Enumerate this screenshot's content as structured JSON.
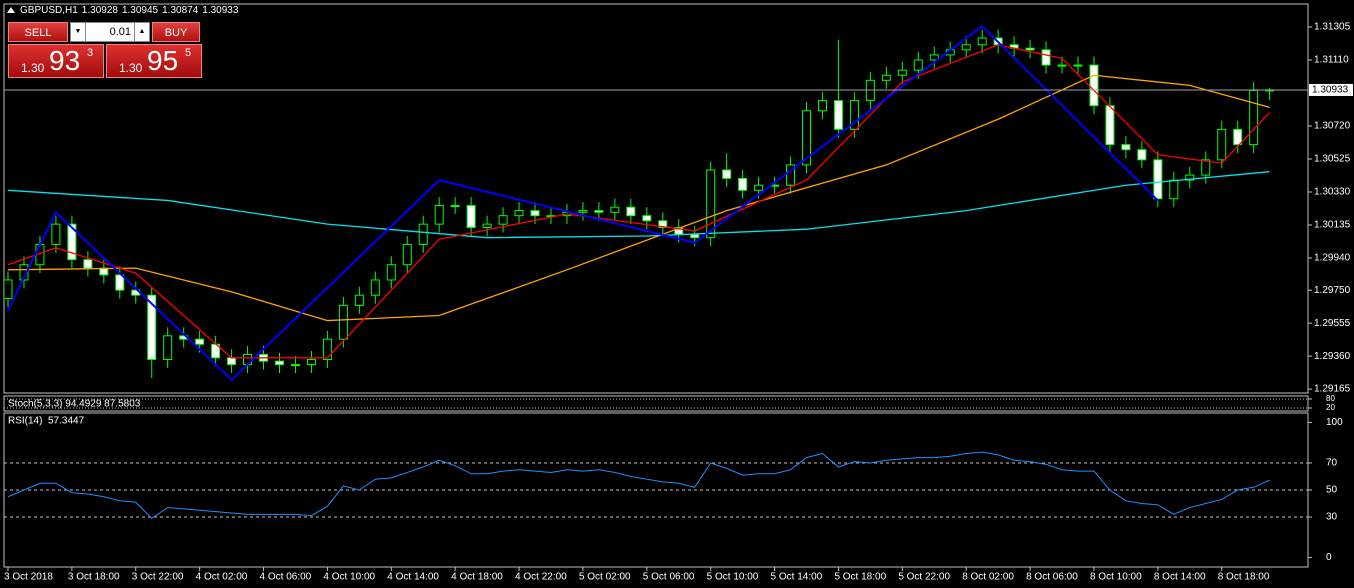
{
  "header": {
    "symbol": "GBPUSD,H1"
  },
  "trade_panel": {
    "sell_label": "SELL",
    "buy_label": "BUY",
    "lot": "0.01",
    "bid": {
      "prefix": "1.30",
      "big": "93",
      "small": "3"
    },
    "ask": {
      "prefix": "1.30",
      "big": "95",
      "small": "5"
    }
  },
  "chart_data": [
    {
      "type": "candlestick",
      "categories": [
        "3 Oct 2018",
        null,
        null,
        null,
        "3 Oct 18:00",
        null,
        null,
        null,
        "3 Oct 22:00",
        null,
        null,
        null,
        "4 Oct 02:00",
        null,
        null,
        null,
        "4 Oct 06:00",
        null,
        null,
        null,
        "4 Oct 10:00",
        null,
        null,
        null,
        "4 Oct 14:00",
        null,
        null,
        null,
        "4 Oct 18:00",
        null,
        null,
        null,
        "4 Oct 22:00",
        null,
        null,
        null,
        "5 Oct 02:00",
        null,
        null,
        null,
        "5 Oct 06:00",
        null,
        null,
        null,
        "5 Oct 10:00",
        null,
        null,
        null,
        "5 Oct 14:00",
        null,
        null,
        null,
        "5 Oct 18:00",
        null,
        null,
        null,
        "5 Oct 22:00",
        null,
        null,
        null,
        "8 Oct 02:00",
        null,
        null,
        null,
        "8 Oct 06:00",
        null,
        null,
        null,
        "8 Oct 10:00",
        null,
        null,
        null,
        "8 Oct 14:00",
        null,
        null,
        null,
        "8 Oct 18:00",
        null,
        null,
        null
      ],
      "open": [
        1.297,
        1.2981,
        1.299,
        1.3002,
        1.3014,
        1.2993,
        1.2988,
        1.2984,
        1.2975,
        1.2972,
        1.2934,
        1.2948,
        1.2946,
        1.2943,
        1.2935,
        1.2931,
        1.2937,
        1.2933,
        1.2931,
        1.2931,
        1.2934,
        1.2946,
        1.2966,
        1.2972,
        1.2981,
        1.299,
        1.3002,
        1.3014,
        1.3025,
        1.3025,
        1.3012,
        1.3014,
        1.3019,
        1.3022,
        1.3019,
        1.3019,
        1.3021,
        1.3022,
        1.3021,
        1.3024,
        1.3019,
        1.3016,
        1.3012,
        1.3008,
        1.3006,
        1.3046,
        1.3041,
        1.3034,
        1.3037,
        1.3037,
        1.3049,
        1.3081,
        1.3087,
        1.307,
        1.3087,
        1.3099,
        1.3102,
        1.3105,
        1.3111,
        1.3114,
        1.3117,
        1.312,
        1.3124,
        1.312,
        1.3118,
        1.3117,
        1.3108,
        1.3108,
        1.3108,
        1.3084,
        1.3061,
        1.3058,
        1.3052,
        1.3029,
        1.304,
        1.3043,
        1.3052,
        1.307,
        1.3061,
        1.30928
      ],
      "high": [
        1.2986,
        1.2995,
        1.3007,
        1.3019,
        1.3019,
        1.2998,
        1.2993,
        1.2989,
        1.298,
        1.2977,
        1.2953,
        1.2953,
        1.2951,
        1.2948,
        1.294,
        1.2942,
        1.2942,
        1.2938,
        1.2936,
        1.2939,
        1.2951,
        1.2971,
        1.2977,
        1.2986,
        1.2995,
        1.3007,
        1.3019,
        1.303,
        1.303,
        1.303,
        1.3019,
        1.3024,
        1.3027,
        1.3027,
        1.3024,
        1.3026,
        1.3027,
        1.3027,
        1.3029,
        1.3029,
        1.3024,
        1.3021,
        1.3017,
        1.3013,
        1.3051,
        1.3056,
        1.3046,
        1.3042,
        1.3042,
        1.3054,
        1.3086,
        1.3092,
        1.3123,
        1.3092,
        1.3104,
        1.3107,
        1.311,
        1.3116,
        1.3119,
        1.3122,
        1.3125,
        1.3129,
        1.3129,
        1.3125,
        1.3123,
        1.3122,
        1.3113,
        1.3113,
        1.3113,
        1.3089,
        1.3066,
        1.3063,
        1.3057,
        1.3045,
        1.3048,
        1.3057,
        1.3075,
        1.3075,
        1.3098,
        1.30945
      ],
      "low": [
        1.2965,
        1.2976,
        1.2985,
        1.2997,
        1.2988,
        1.2983,
        1.2979,
        1.297,
        1.2967,
        1.2923,
        1.2929,
        1.2941,
        1.2938,
        1.293,
        1.2926,
        1.2926,
        1.2928,
        1.2926,
        1.2926,
        1.2926,
        1.2929,
        1.2941,
        1.2961,
        1.2967,
        1.2976,
        1.2985,
        1.2997,
        1.3009,
        1.302,
        1.3007,
        1.3007,
        1.3009,
        1.3014,
        1.3014,
        1.3014,
        1.3014,
        1.3016,
        1.3016,
        1.3016,
        1.3014,
        1.3011,
        1.3007,
        1.3003,
        1.3001,
        1.3001,
        1.3036,
        1.3029,
        1.3029,
        1.3032,
        1.3032,
        1.3044,
        1.3076,
        1.3065,
        1.3065,
        1.3082,
        1.3094,
        1.3097,
        1.31,
        1.3106,
        1.3109,
        1.3112,
        1.3115,
        1.3115,
        1.3113,
        1.3112,
        1.3103,
        1.3103,
        1.3103,
        1.3079,
        1.3056,
        1.3053,
        1.3047,
        1.3024,
        1.3024,
        1.3035,
        1.3038,
        1.3047,
        1.3056,
        1.3056,
        1.30874
      ],
      "close": [
        1.2981,
        1.299,
        1.3002,
        1.3014,
        1.2993,
        1.2988,
        1.2984,
        1.2975,
        1.2972,
        1.2934,
        1.2948,
        1.2946,
        1.2943,
        1.2935,
        1.2931,
        1.2937,
        1.2933,
        1.2931,
        1.2931,
        1.2934,
        1.2946,
        1.2966,
        1.2972,
        1.2981,
        1.299,
        1.3002,
        1.3014,
        1.3025,
        1.3025,
        1.3012,
        1.3014,
        1.3019,
        1.3022,
        1.3019,
        1.3019,
        1.3021,
        1.3022,
        1.3021,
        1.3024,
        1.3019,
        1.3016,
        1.3012,
        1.3008,
        1.3006,
        1.3046,
        1.3041,
        1.3034,
        1.3037,
        1.3037,
        1.3049,
        1.3081,
        1.3087,
        1.307,
        1.3087,
        1.3099,
        1.3102,
        1.3105,
        1.3111,
        1.3114,
        1.3117,
        1.312,
        1.3124,
        1.312,
        1.3118,
        1.3117,
        1.3108,
        1.3108,
        1.3108,
        1.3084,
        1.3061,
        1.3058,
        1.3052,
        1.3029,
        1.304,
        1.3043,
        1.3052,
        1.307,
        1.3061,
        1.3093,
        1.30933
      ],
      "colors": {
        "up": "#00ff00",
        "down": "#ffffff",
        "up_body": "#000000"
      },
      "overlays": [
        {
          "x": [
            0,
            8,
            14,
            20,
            27,
            35,
            45,
            55,
            62,
            68,
            74,
            79
          ],
          "values": [
            1.2987,
            1.2988,
            1.2974,
            1.2957,
            1.296,
            1.2987,
            1.3022,
            1.3049,
            1.3076,
            1.3102,
            1.3096,
            1.3083
          ],
          "color": "#ffa500"
        },
        {
          "x": [
            0,
            10,
            20,
            30,
            40,
            50,
            60,
            70,
            79
          ],
          "values": [
            1.3034,
            1.3028,
            1.3014,
            1.3006,
            1.3007,
            1.3011,
            1.3022,
            1.3037,
            1.3045
          ],
          "color": "#00e5ee"
        },
        {
          "x": [
            0,
            3,
            8,
            14,
            20,
            27,
            35,
            43,
            50,
            56,
            62,
            66,
            72,
            76,
            79
          ],
          "values": [
            1.299,
            1.3,
            1.2985,
            1.2935,
            1.2935,
            1.3005,
            1.302,
            1.301,
            1.304,
            1.3098,
            1.312,
            1.3112,
            1.3055,
            1.305,
            1.308
          ],
          "color": "#ff0000"
        },
        {
          "x": [
            0,
            3,
            14,
            27,
            43,
            61,
            72
          ],
          "values": [
            1.2963,
            1.3021,
            1.2922,
            1.304,
            1.3003,
            1.3131,
            1.3028
          ],
          "color": "#0000ff"
        }
      ],
      "ylim": [
        1.29142,
        1.31441
      ],
      "yticks": [
        1.31305,
        {
          "value": 1.3111,
          "label": "1.31110"
        },
        {
          "value": 1.3072,
          "label": "1.30720"
        },
        1.30525,
        {
          "value": 1.3033,
          "label": "1.30330"
        },
        1.30135,
        {
          "value": 1.2994,
          "label": "1.29940"
        },
        {
          "value": 1.2975,
          "label": "1.29750"
        },
        1.29555,
        {
          "value": 1.2936,
          "label": "1.29360"
        },
        1.29165
      ]
    },
    {
      "type": "line",
      "title": "Stoch(5,3,3) 94.4929 87.5803",
      "ylim": [
        0,
        100
      ],
      "yticks": [
        20,
        80
      ]
    },
    {
      "type": "line",
      "title": "RSI(14)",
      "color": "#1e90ff",
      "values": [
        45,
        50,
        55,
        55,
        48,
        47,
        45,
        42,
        41,
        29,
        37,
        36,
        35,
        34,
        33,
        32,
        32,
        32,
        32,
        31,
        38,
        53,
        50,
        58,
        59,
        63,
        67,
        72,
        68,
        62,
        62,
        64,
        65,
        64,
        63,
        65,
        64,
        65,
        63,
        60,
        58,
        56,
        55,
        52,
        70,
        66,
        61,
        62,
        62,
        65,
        74,
        77,
        67,
        71,
        70,
        72,
        73,
        74,
        74,
        75,
        77,
        78,
        76,
        72,
        71,
        69,
        65,
        64,
        64,
        50,
        42,
        40,
        39,
        32,
        37,
        40,
        43,
        50,
        52,
        57.3447
      ],
      "ylim": [
        -7,
        107
      ],
      "yticks": [
        0,
        30,
        50,
        70,
        100
      ],
      "levels": [
        30,
        50,
        70
      ]
    }
  ]
}
